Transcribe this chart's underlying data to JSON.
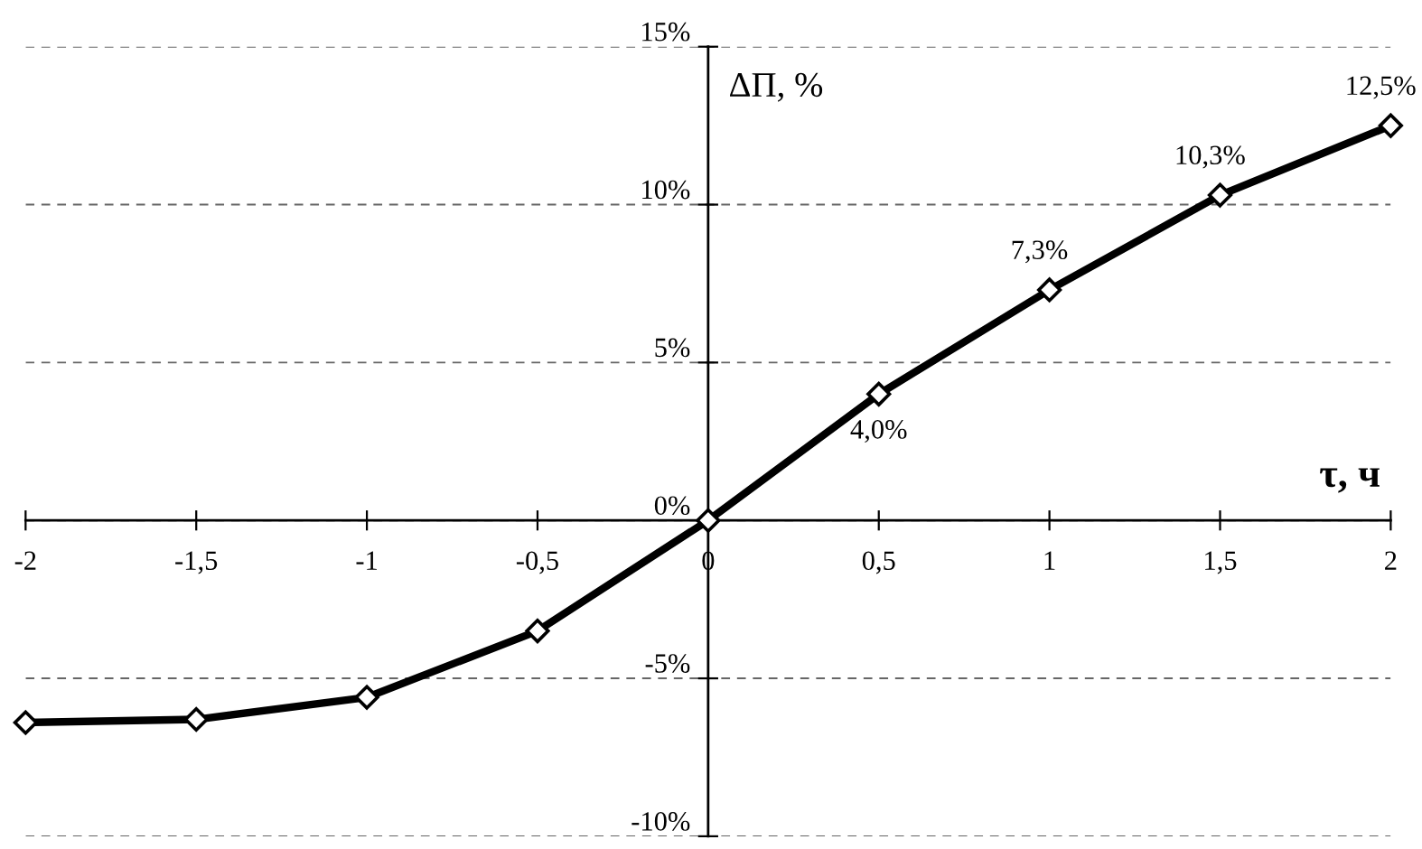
{
  "chart_data": {
    "type": "line",
    "xlabel": "τ, ч",
    "ylabel": "ΔΠ, %",
    "x": [
      -2,
      -1.5,
      -1,
      -0.5,
      0,
      0.5,
      1,
      1.5,
      2
    ],
    "series": [
      {
        "color": "#000000",
        "values": [
          -6.4,
          -6.3,
          -5.6,
          -3.5,
          0,
          4.0,
          7.3,
          10.3,
          12.5
        ],
        "value_labels": [
          null,
          null,
          null,
          null,
          null,
          "4,0%",
          "7,3%",
          "10,3%",
          "12,5%"
        ]
      }
    ],
    "xlim": [
      -2,
      2
    ],
    "ylim": [
      -10,
      15
    ],
    "xticks": [
      {
        "value": -2,
        "label": "-2"
      },
      {
        "value": -1.5,
        "label": "-1,5"
      },
      {
        "value": -1,
        "label": "-1"
      },
      {
        "value": -0.5,
        "label": "-0,5"
      },
      {
        "value": 0,
        "label": "0"
      },
      {
        "value": 0.5,
        "label": "0,5"
      },
      {
        "value": 1,
        "label": "1"
      },
      {
        "value": 1.5,
        "label": "1,5"
      },
      {
        "value": 2,
        "label": "2"
      }
    ],
    "yticks": [
      {
        "value": -10,
        "label": "-10%"
      },
      {
        "value": -5,
        "label": "-5%"
      },
      {
        "value": 0,
        "label": "0%"
      },
      {
        "value": 5,
        "label": "5%"
      },
      {
        "value": 10,
        "label": "10%"
      },
      {
        "value": 15,
        "label": "15%"
      }
    ],
    "grid": "y",
    "marker": "diamond",
    "line_style": "solid"
  }
}
